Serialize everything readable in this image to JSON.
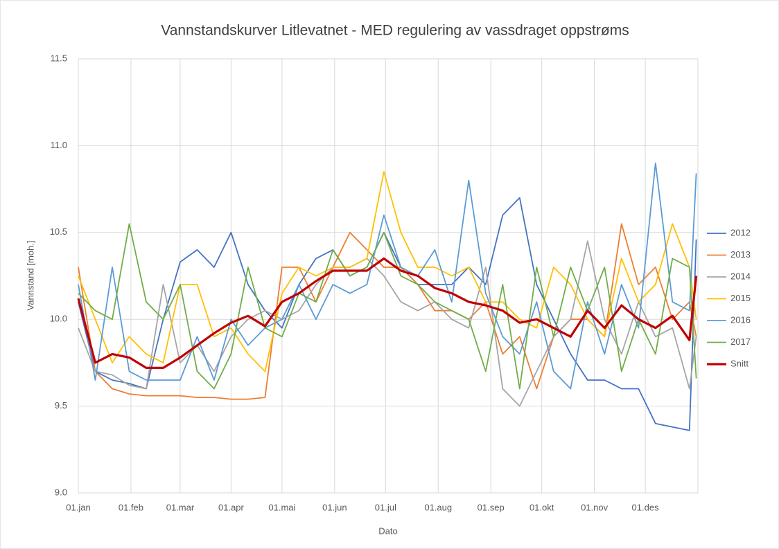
{
  "chart_data": {
    "type": "line",
    "title": "Vannstandskurver  Litlevatnet - MED regulering av vassdraget oppstrøms",
    "x_label": "Dato",
    "y_label": "Vannstand [moh.]",
    "x": [
      0,
      10,
      20,
      30,
      40,
      50,
      60,
      70,
      80,
      90,
      100,
      110,
      120,
      130,
      140,
      150,
      160,
      170,
      180,
      190,
      200,
      210,
      220,
      230,
      240,
      250,
      260,
      270,
      280,
      290,
      300,
      310,
      320,
      330,
      340,
      350,
      360,
      364
    ],
    "xlim": [
      0,
      365
    ],
    "xticks": [
      {
        "value": 0,
        "label": "01.jan"
      },
      {
        "value": 31,
        "label": "01.feb"
      },
      {
        "value": 60,
        "label": "01.mar"
      },
      {
        "value": 90,
        "label": "01.apr"
      },
      {
        "value": 120,
        "label": "01.mai"
      },
      {
        "value": 151,
        "label": "01.jun"
      },
      {
        "value": 181,
        "label": "01.jul"
      },
      {
        "value": 212,
        "label": "01.aug"
      },
      {
        "value": 243,
        "label": "01.sep"
      },
      {
        "value": 273,
        "label": "01.okt"
      },
      {
        "value": 304,
        "label": "01.nov"
      },
      {
        "value": 334,
        "label": "01.des"
      }
    ],
    "ylim": [
      9,
      11.5
    ],
    "yticks": [
      {
        "value": 9,
        "label": "9.0"
      },
      9.5,
      {
        "value": 10,
        "label": "10.0"
      },
      10.5,
      {
        "value": 11,
        "label": "11.0"
      },
      11.5
    ],
    "grid": true,
    "legend": "right",
    "series": [
      {
        "name": "2012",
        "color": "#4472c4",
        "values": [
          10.1,
          9.7,
          9.65,
          9.63,
          9.6,
          10.0,
          10.33,
          10.4,
          10.3,
          10.5,
          10.2,
          10.05,
          9.95,
          10.2,
          10.35,
          10.4,
          10.25,
          10.3,
          10.5,
          10.3,
          10.2,
          10.2,
          10.2,
          10.3,
          10.2,
          10.6,
          10.7,
          10.2,
          10.0,
          9.8,
          9.65,
          9.65,
          9.6,
          9.6,
          9.4,
          9.38,
          9.36,
          10.46
        ]
      },
      {
        "name": "2013",
        "color": "#ed7d31",
        "values": [
          10.3,
          9.7,
          9.6,
          9.57,
          9.56,
          9.56,
          9.56,
          9.55,
          9.55,
          9.54,
          9.54,
          9.55,
          10.3,
          10.3,
          10.1,
          10.3,
          10.5,
          10.4,
          10.3,
          10.3,
          10.2,
          10.05,
          10.05,
          10.0,
          10.1,
          9.8,
          9.9,
          9.6,
          9.9,
          10.0,
          10.0,
          9.9,
          10.55,
          10.2,
          10.3,
          10.0,
          10.1,
          9.9
        ]
      },
      {
        "name": "2014",
        "color": "#a5a5a5",
        "values": [
          9.95,
          9.7,
          9.68,
          9.62,
          9.6,
          10.2,
          9.75,
          9.85,
          9.7,
          9.9,
          10.0,
          10.05,
          10.0,
          10.05,
          10.2,
          10.3,
          10.3,
          10.35,
          10.25,
          10.1,
          10.05,
          10.1,
          10.0,
          9.95,
          10.3,
          9.6,
          9.5,
          9.7,
          9.9,
          10.0,
          10.45,
          10.0,
          9.8,
          10.1,
          9.9,
          9.95,
          9.6,
          9.9
        ]
      },
      {
        "name": "2015",
        "color": "#ffc000",
        "values": [
          10.25,
          10.0,
          9.75,
          9.9,
          9.8,
          9.75,
          10.2,
          10.2,
          9.9,
          9.95,
          9.8,
          9.7,
          10.15,
          10.3,
          10.25,
          10.3,
          10.3,
          10.35,
          10.85,
          10.5,
          10.3,
          10.3,
          10.25,
          10.3,
          10.1,
          10.1,
          10.0,
          9.95,
          10.3,
          10.2,
          10.0,
          9.9,
          10.35,
          10.1,
          10.2,
          10.55,
          10.3,
          10.0
        ]
      },
      {
        "name": "2016",
        "color": "#5b9bd5",
        "values": [
          10.2,
          9.65,
          10.3,
          9.7,
          9.65,
          9.65,
          9.65,
          9.9,
          9.65,
          10.0,
          9.85,
          9.95,
          10.0,
          10.2,
          10.0,
          10.2,
          10.15,
          10.2,
          10.6,
          10.3,
          10.25,
          10.4,
          10.1,
          10.8,
          10.15,
          9.9,
          9.8,
          10.1,
          9.7,
          9.6,
          10.1,
          9.8,
          10.2,
          9.95,
          10.9,
          10.1,
          10.05,
          10.84
        ]
      },
      {
        "name": "2017",
        "color": "#70ad47",
        "values": [
          10.15,
          10.05,
          10.0,
          10.55,
          10.1,
          10.0,
          10.2,
          9.7,
          9.6,
          9.8,
          10.3,
          9.95,
          9.9,
          10.15,
          10.1,
          10.4,
          10.25,
          10.3,
          10.5,
          10.25,
          10.2,
          10.1,
          10.05,
          10.0,
          9.7,
          10.2,
          9.6,
          10.3,
          9.9,
          10.3,
          10.05,
          10.3,
          9.7,
          10.0,
          9.8,
          10.35,
          10.3,
          9.66
        ]
      },
      {
        "name": "Snitt",
        "color": "#c00000",
        "values": [
          10.12,
          9.75,
          9.8,
          9.78,
          9.72,
          9.72,
          9.78,
          9.85,
          9.92,
          9.98,
          10.02,
          9.96,
          10.1,
          10.15,
          10.22,
          10.28,
          10.28,
          10.28,
          10.35,
          10.28,
          10.25,
          10.18,
          10.15,
          10.1,
          10.08,
          10.05,
          9.98,
          10.0,
          9.95,
          9.9,
          10.05,
          9.95,
          10.08,
          10.0,
          9.95,
          10.02,
          9.88,
          10.25
        ]
      }
    ]
  }
}
